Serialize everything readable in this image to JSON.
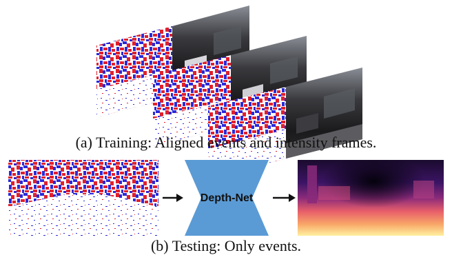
{
  "figure": {
    "training_caption": "(a) Training: Aligned events and intensity frames.",
    "testing_caption": "(b) Testing: Only events.",
    "network_label": "Depth-Net"
  },
  "colors": {
    "event_positive": "#2a2ad8",
    "event_negative": "#e0202c",
    "network_fill": "#5b9bd5",
    "arrow": "#111111",
    "depth_near": "#fff0a0",
    "depth_mid": "#e85f6a",
    "depth_far": "#0a0418"
  },
  "icons": {
    "event_frame": "event-frame-icon",
    "intensity_frame": "intensity-frame-icon",
    "depth_map": "depth-map-icon",
    "network": "bowtie-network-icon",
    "arrow": "right-arrow-icon"
  }
}
